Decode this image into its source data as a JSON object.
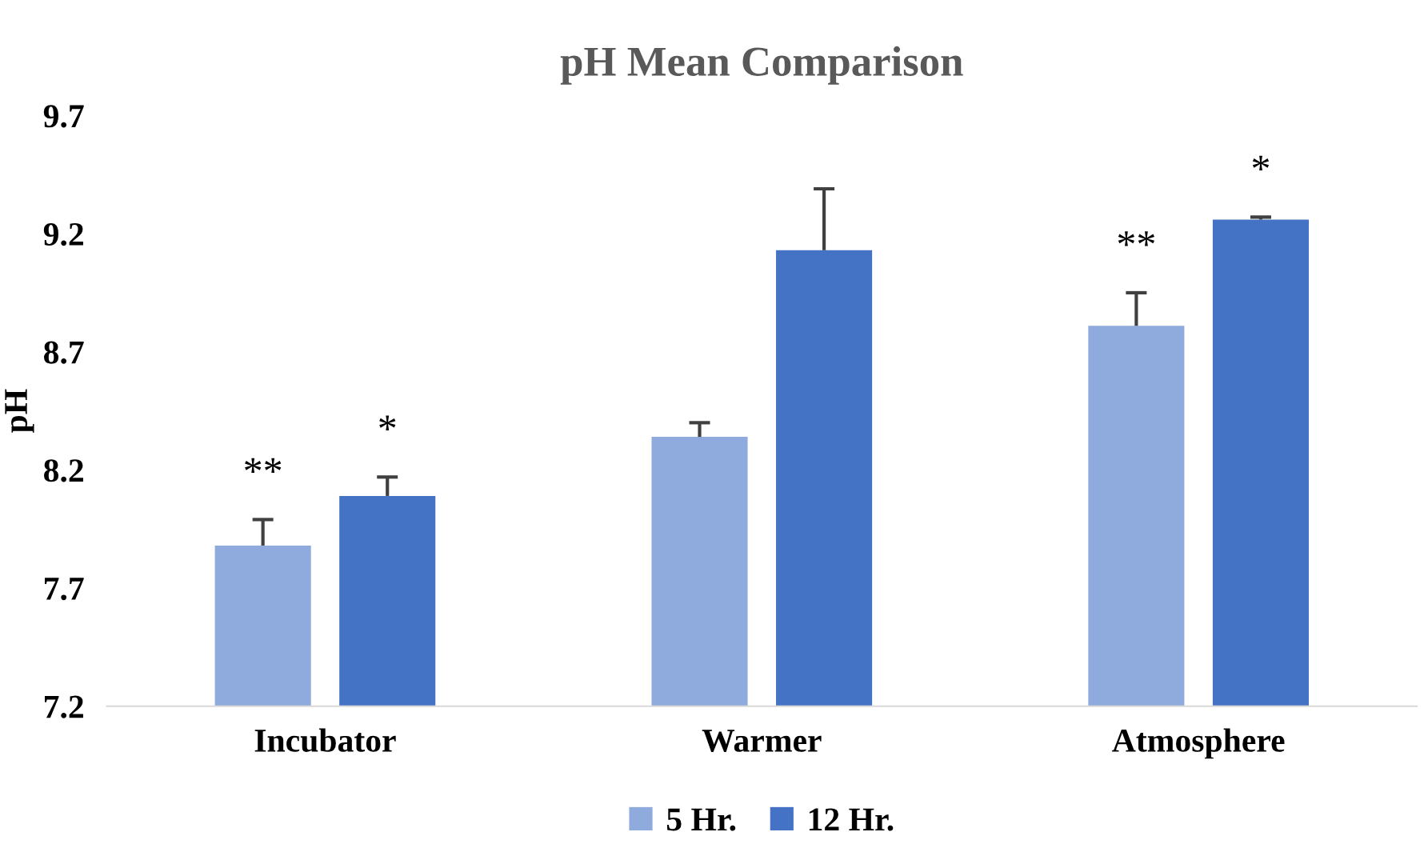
{
  "chart_data": {
    "type": "bar",
    "title": "pH Mean Comparison",
    "ylabel": "pH",
    "categories": [
      "Incubator",
      "Warmer",
      "Atmosphere"
    ],
    "series": [
      {
        "name": "5 Hr.",
        "color": "#8faadc",
        "values": [
          7.88,
          8.34,
          8.81
        ],
        "value_labels": [
          "**",
          null,
          "**"
        ],
        "errors": [
          [
            7.88,
            7.99
          ],
          [
            8.34,
            8.4
          ],
          [
            8.81,
            8.95
          ]
        ]
      },
      {
        "name": "12 Hr.",
        "color": "#4472c4",
        "values": [
          8.09,
          9.13,
          9.26
        ],
        "value_labels": [
          "*",
          null,
          "*"
        ],
        "errors": [
          [
            8.09,
            8.17
          ],
          [
            9.13,
            9.39
          ],
          [
            9.26,
            9.27
          ]
        ]
      }
    ],
    "ylim": [
      7.2,
      9.7
    ],
    "yticks": [
      7.2,
      7.7,
      8.2,
      8.7,
      9.2,
      9.7
    ],
    "grid": false,
    "legend": "bottom"
  }
}
